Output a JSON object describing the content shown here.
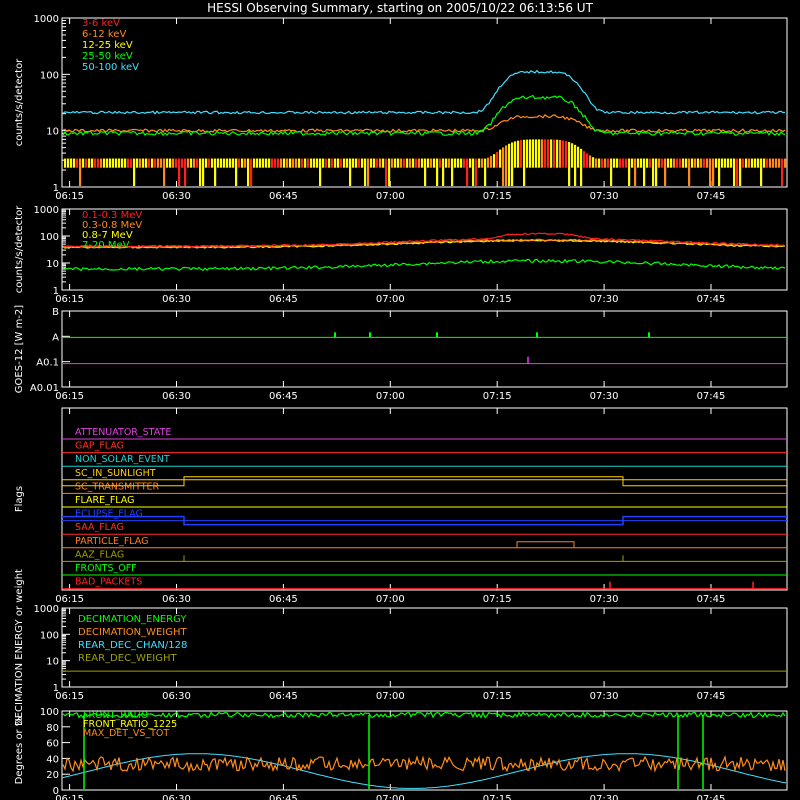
{
  "title": "HESSI Observing Summary, starting on 2005/10/22 06:13:56 UT",
  "time_ticks": [
    "06:15",
    "06:30",
    "06:45",
    "07:00",
    "07:15",
    "07:30",
    "07:45"
  ],
  "chart_data": [
    {
      "id": "p1",
      "type": "line",
      "ylabel": "counts/s/detector",
      "yscale": "log",
      "ylim": [
        1,
        1000
      ],
      "yticks": [
        "1",
        "10",
        "100",
        "1000"
      ],
      "series": [
        {
          "name": "3-6 keV",
          "color": "#ff2020"
        },
        {
          "name": "6-12 keV",
          "color": "#ff8c1a"
        },
        {
          "name": "12-25 keV",
          "color": "#ffff00"
        },
        {
          "name": "25-50 keV",
          "color": "#00ff00"
        },
        {
          "name": "50-100 keV",
          "color": "#40e0ff"
        }
      ]
    },
    {
      "id": "p2",
      "type": "line",
      "ylabel": "counts/s/detector",
      "yscale": "log",
      "ylim": [
        1,
        1000
      ],
      "yticks": [
        "1",
        "10",
        "100",
        "1000"
      ],
      "series": [
        {
          "name": "0.1-0.3 MeV",
          "color": "#ff2020"
        },
        {
          "name": "0.3-0.8 MeV",
          "color": "#ff8c1a"
        },
        {
          "name": "0.8-7 MeV",
          "color": "#ffff00"
        },
        {
          "name": "7-20 MeV",
          "color": "#00ff00"
        }
      ]
    },
    {
      "id": "p3",
      "type": "line",
      "ylabel": "GOES-12 [W m-2]",
      "yticks": [
        "A0.01",
        "A0.1",
        "A",
        "B"
      ],
      "series": [
        {
          "color": "#00ff00"
        },
        {
          "color": "#e040e0"
        }
      ]
    },
    {
      "id": "p4",
      "type": "line",
      "ylabel": "Flags",
      "series": [
        {
          "name": "ATTENUATOR_STATE",
          "color": "#e040e0"
        },
        {
          "name": "GAP_FLAG",
          "color": "#ff3020"
        },
        {
          "name": "NON_SOLAR_EVENT",
          "color": "#20d0d0"
        },
        {
          "name": "SC_IN_SUNLIGHT",
          "color": "#ffd000"
        },
        {
          "name": "SC_TRANSMITTER",
          "color": "#ff8020"
        },
        {
          "name": "FLARE_FLAG",
          "color": "#ffff00"
        },
        {
          "name": "ECLIPSE_FLAG",
          "color": "#2040ff"
        },
        {
          "name": "SAA_FLAG",
          "color": "#ff3020"
        },
        {
          "name": "PARTICLE_FLAG",
          "color": "#ff8020"
        },
        {
          "name": "AAZ_FLAG",
          "color": "#a0a000"
        },
        {
          "name": "FRONTS_OFF",
          "color": "#00ff00"
        },
        {
          "name": "BAD_PACKETS",
          "color": "#ff2020"
        }
      ]
    },
    {
      "id": "p5",
      "type": "line",
      "ylabel": "DECIMATION ENERGY or weight",
      "yscale": "log",
      "ylim": [
        1,
        1000
      ],
      "yticks": [
        "1",
        "10",
        "100",
        "1000"
      ],
      "series": [
        {
          "name": "DECIMATION_ENERGY",
          "color": "#00ff00"
        },
        {
          "name": "DECIMATION_WEIGHT",
          "color": "#ff8c1a"
        },
        {
          "name": "REAR_DEC_CHAN/128",
          "color": "#40e0ff"
        },
        {
          "name": "REAR_DEC_WEIGHT",
          "color": "#a0a000"
        }
      ]
    },
    {
      "id": "p6",
      "type": "line",
      "ylabel": "Degrees or %",
      "ylim": [
        0,
        100
      ],
      "yticks": [
        "0",
        "20",
        "40",
        "60",
        "80",
        "100"
      ],
      "series": [
        {
          "name": "FRONT_RATIO",
          "color": "#00ff00"
        },
        {
          "name": "FRONT_RATIO_1225",
          "color": "#ffff00"
        },
        {
          "name": "MAX_DET_VS_TOT",
          "color": "#ff8c1a"
        }
      ]
    }
  ]
}
